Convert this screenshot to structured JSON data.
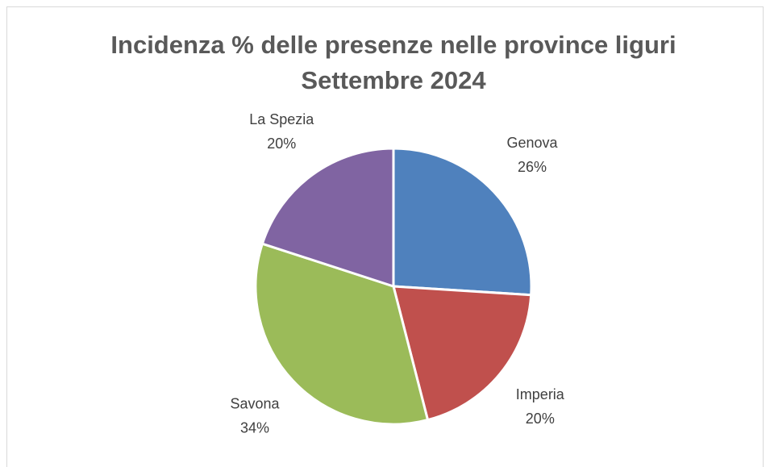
{
  "chart_data": {
    "type": "pie",
    "title": [
      "Incidenza % delle presenze nelle province liguri",
      "Settembre 2024"
    ],
    "categories": [
      "Genova",
      "Imperia",
      "Savona",
      "La Spezia"
    ],
    "values": [
      26,
      20,
      34,
      20
    ],
    "value_labels": [
      "26%",
      "20%",
      "34%",
      "20%"
    ],
    "colors": [
      "#4f81bd",
      "#c0504d",
      "#9bbb59",
      "#8064a2"
    ]
  }
}
